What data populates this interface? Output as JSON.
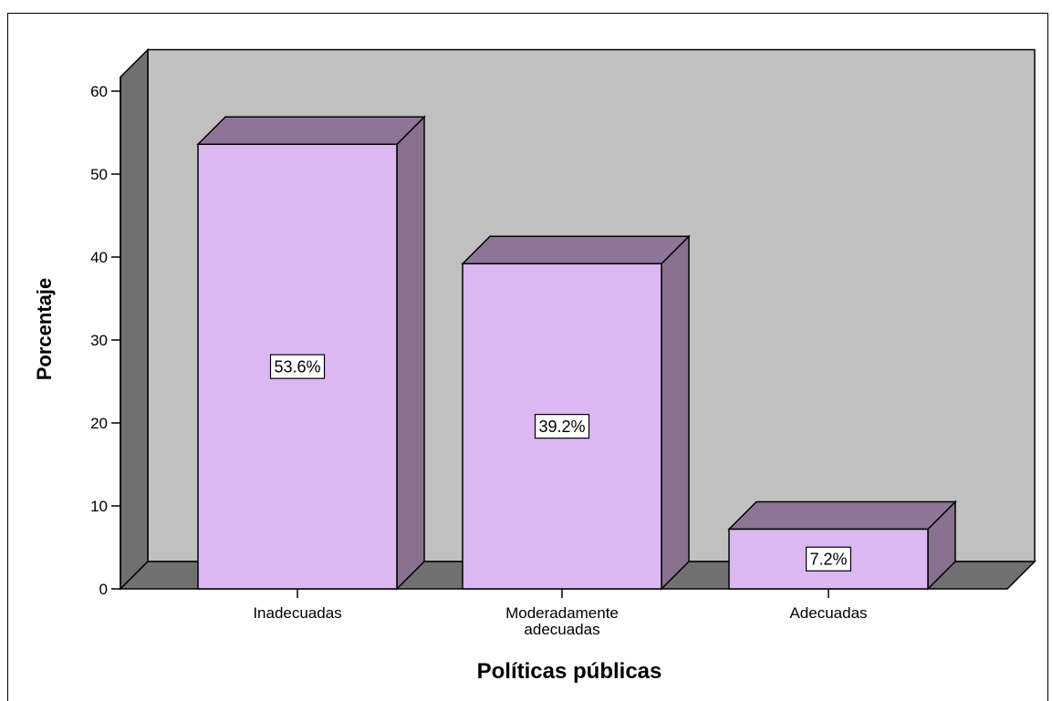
{
  "chart_data": {
    "type": "bar",
    "categories": [
      [
        "Inadecuadas"
      ],
      [
        "Moderadamente",
        "adecuadas"
      ],
      [
        "Adecuadas"
      ]
    ],
    "values": [
      53.6,
      39.2,
      7.2
    ],
    "data_labels": [
      "53.6%",
      "39.2%",
      "7.2%"
    ],
    "xlabel": "Políticas públicas",
    "ylabel": "Porcentaje",
    "ylim": [
      0,
      65
    ],
    "yticks": [
      0,
      10,
      20,
      30,
      40,
      50,
      60
    ],
    "style": "3d",
    "grid": false,
    "legend": "none",
    "colors": {
      "bar_front": "#dcb8f2",
      "bar_top": "#8c7597",
      "bar_side": "#87718f",
      "back_wall": "#c0c0c0",
      "side_wall": "#707070",
      "floor": "#707070",
      "outline": "#000000"
    }
  }
}
